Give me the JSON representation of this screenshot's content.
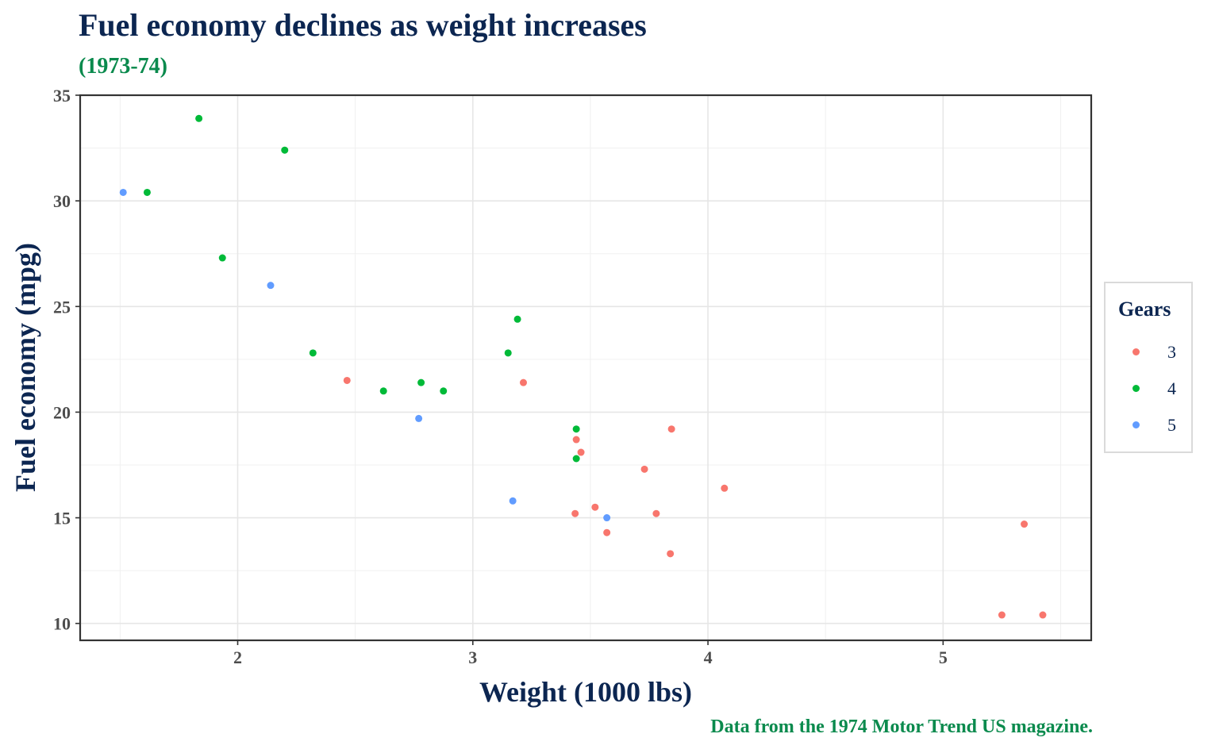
{
  "chart_data": {
    "type": "scatter",
    "title": "Fuel economy declines as weight increases",
    "subtitle": "(1973-74)",
    "caption": "Data from the 1974 Motor Trend US magazine.",
    "xlabel": "Weight (1000 lbs)",
    "ylabel": "Fuel economy (mpg)",
    "xlim": [
      1.33,
      5.63
    ],
    "ylim": [
      9.2,
      35.0
    ],
    "xticks": [
      2,
      3,
      4,
      5
    ],
    "yticks": [
      10,
      15,
      20,
      25,
      30,
      35
    ],
    "grid": true,
    "legend": {
      "title": "Gears",
      "placement": "right"
    },
    "series": [
      {
        "name": "3",
        "color": "#f8766d",
        "x": [
          3.215,
          3.44,
          3.46,
          3.57,
          4.07,
          3.73,
          3.78,
          5.25,
          5.424,
          5.345,
          2.465,
          3.52,
          3.435,
          3.84,
          3.845
        ],
        "y": [
          21.4,
          18.7,
          18.1,
          14.3,
          16.4,
          17.3,
          15.2,
          10.4,
          10.4,
          14.7,
          21.5,
          15.5,
          15.2,
          13.3,
          19.2
        ]
      },
      {
        "name": "4",
        "color": "#00ba38",
        "x": [
          2.62,
          2.875,
          2.32,
          3.19,
          3.15,
          3.44,
          3.44,
          2.2,
          1.615,
          1.835,
          1.935,
          2.78
        ],
        "y": [
          21.0,
          21.0,
          22.8,
          24.4,
          22.8,
          19.2,
          17.8,
          32.4,
          30.4,
          33.9,
          27.3,
          21.4
        ]
      },
      {
        "name": "5",
        "color": "#619cff",
        "x": [
          2.14,
          1.513,
          3.17,
          2.77,
          3.57
        ],
        "y": [
          26.0,
          30.4,
          15.8,
          19.7,
          15.0
        ]
      }
    ]
  }
}
